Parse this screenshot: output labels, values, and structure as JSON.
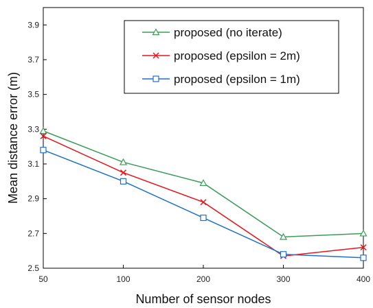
{
  "chart_data": {
    "type": "line",
    "xlabel": "Number of sensor nodes",
    "ylabel": "Mean distance error (m)",
    "categories": [
      "50",
      "100",
      "200",
      "300",
      "400"
    ],
    "ylim": [
      2.5,
      4.0
    ],
    "yticks": [
      "2.5",
      "2.7",
      "2.9",
      "3.1",
      "3.3",
      "3.5",
      "3.7",
      "3.9"
    ],
    "grid": false,
    "legend_position": "top-right",
    "series": [
      {
        "name": "proposed (no iterate)",
        "color": "#3a9a5a",
        "marker": "triangle",
        "values": [
          3.29,
          3.11,
          2.99,
          2.68,
          2.7
        ]
      },
      {
        "name": "proposed (epsilon = 2m)",
        "color": "#e8141c",
        "marker": "x",
        "values": [
          3.26,
          3.05,
          2.88,
          2.57,
          2.62
        ]
      },
      {
        "name": "proposed (epsilon = 1m)",
        "color": "#1f6fc9",
        "marker": "square",
        "values": [
          3.18,
          3.0,
          2.79,
          2.58,
          2.56
        ]
      }
    ]
  }
}
